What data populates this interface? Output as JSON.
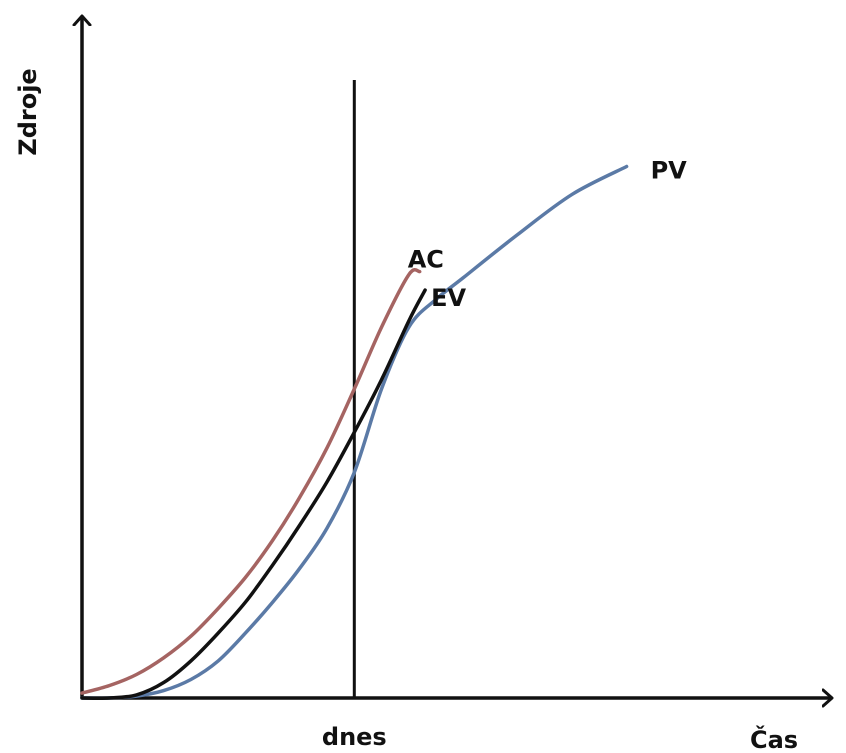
{
  "chart_data": {
    "type": "line",
    "ylabel": "Zdroje",
    "xlabel": "Čas",
    "today_label": "dnes",
    "today_x": 5.0,
    "xlim": [
      0,
      13
    ],
    "ylim": [
      0,
      10
    ],
    "grid": false,
    "series": [
      {
        "name": "PV",
        "color": "#5b7aa6",
        "x": [
          0,
          0.5,
          1,
          1.5,
          2,
          2.5,
          3,
          3.5,
          4,
          4.5,
          5,
          5.5,
          6,
          6.5,
          7,
          8,
          9,
          10
        ],
        "y": [
          0.0,
          0.0,
          0.03,
          0.12,
          0.3,
          0.6,
          1.05,
          1.55,
          2.1,
          2.75,
          3.65,
          5.0,
          6.0,
          6.45,
          6.8,
          7.5,
          8.15,
          8.6
        ]
      },
      {
        "name": "EV",
        "color": "#111111",
        "x": [
          0,
          0.5,
          1,
          1.5,
          2,
          2.5,
          3,
          3.5,
          4,
          4.5,
          5,
          5.5,
          6,
          6.3
        ],
        "y": [
          0.0,
          0.0,
          0.05,
          0.25,
          0.6,
          1.05,
          1.55,
          2.15,
          2.8,
          3.5,
          4.3,
          5.15,
          6.1,
          6.6
        ]
      },
      {
        "name": "AC",
        "color": "#a56462",
        "x": [
          0,
          0.5,
          1,
          1.5,
          2,
          2.5,
          3,
          3.5,
          4,
          4.5,
          5,
          5.5,
          6,
          6.2
        ],
        "y": [
          0.08,
          0.2,
          0.38,
          0.65,
          1.0,
          1.45,
          1.95,
          2.55,
          3.25,
          4.05,
          5.0,
          6.0,
          6.85,
          6.9
        ]
      }
    ]
  }
}
